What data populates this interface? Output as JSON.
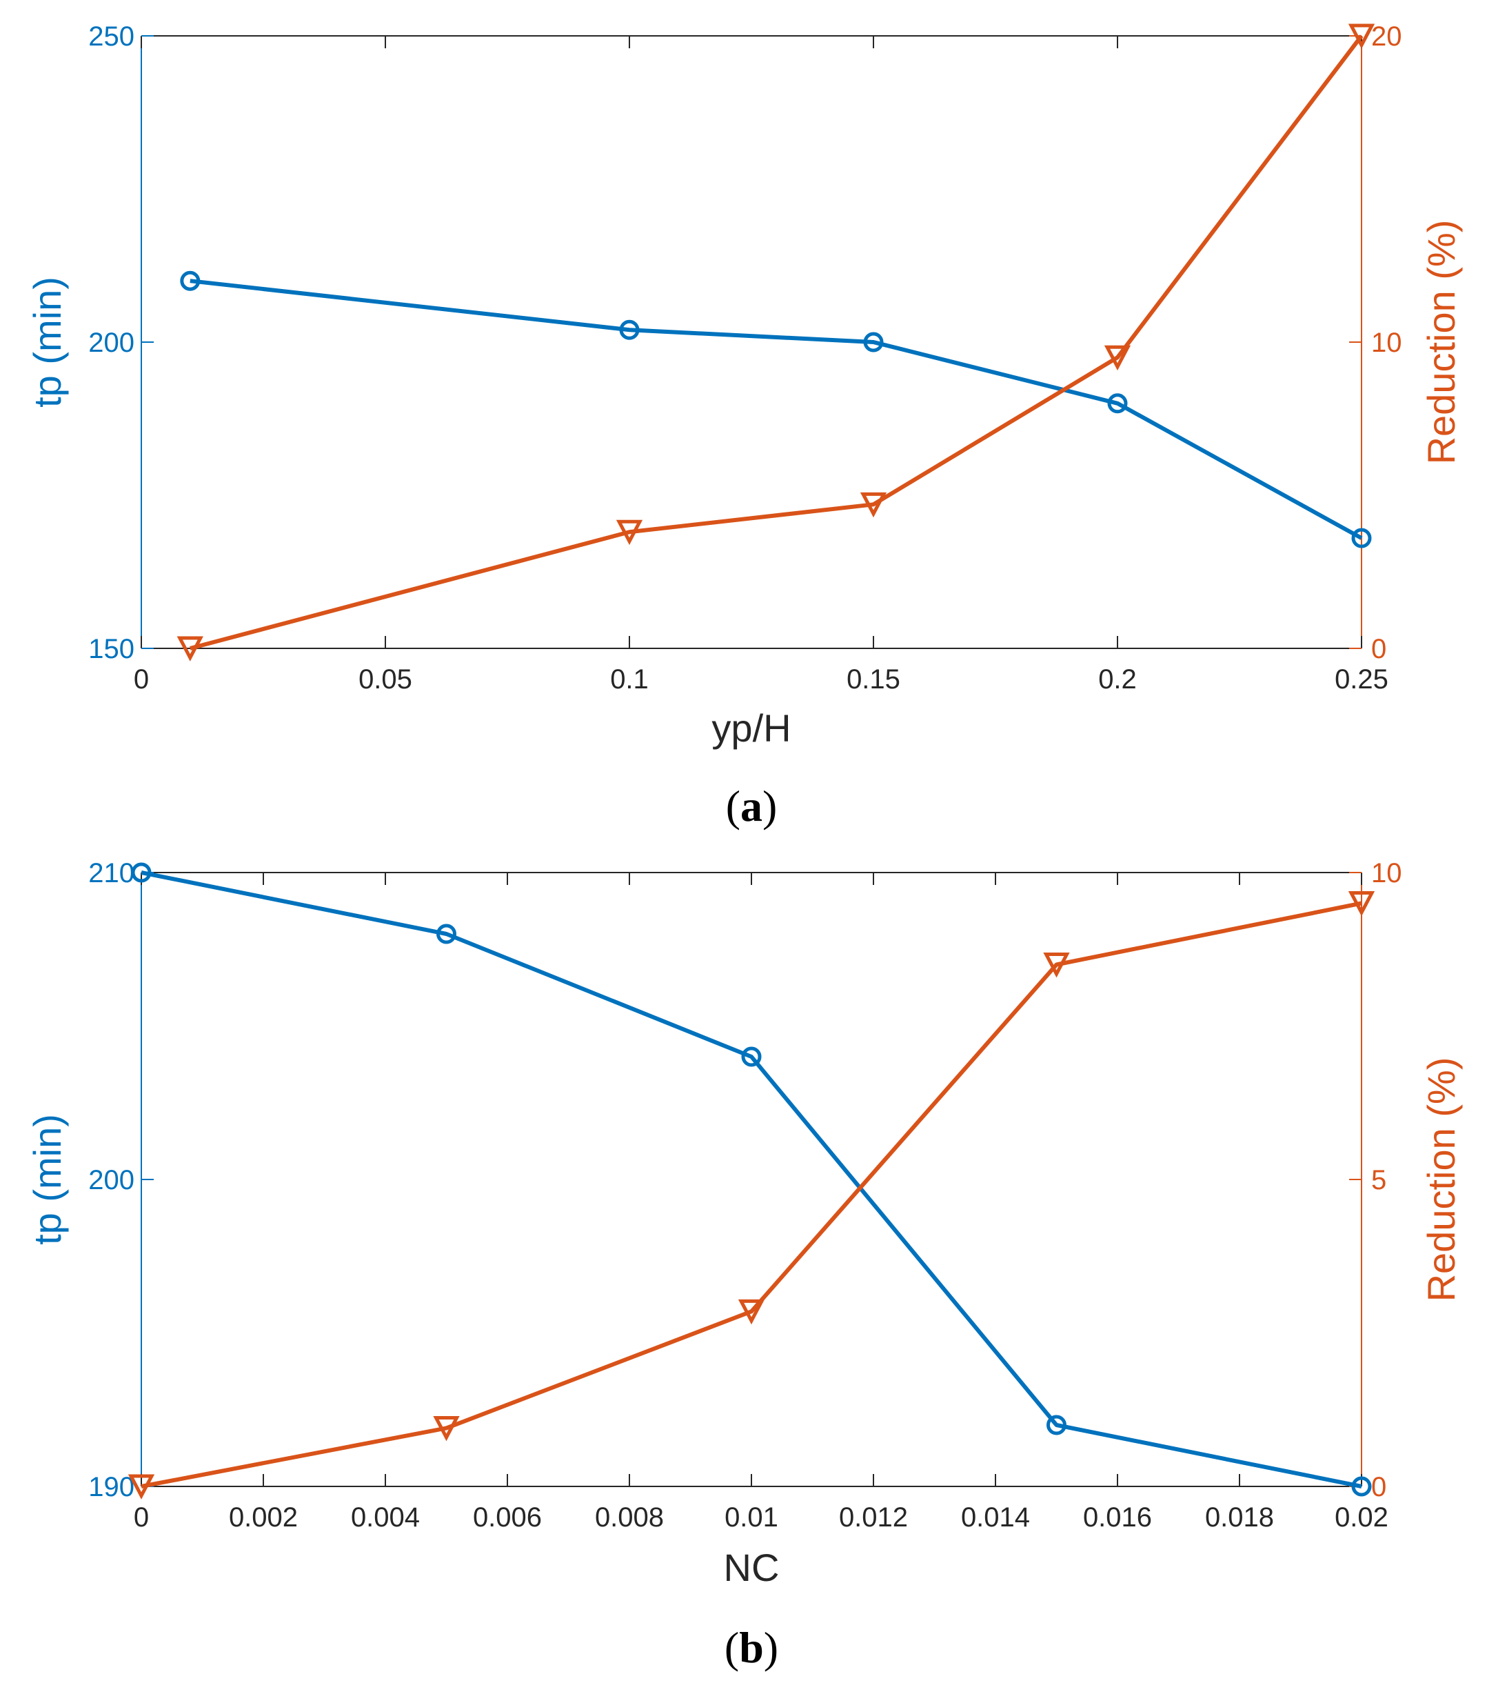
{
  "colors": {
    "left": "#0072BD",
    "right": "#D95319",
    "axis": "#262626"
  },
  "chart_data": [
    {
      "type": "line",
      "panel_label_paren_open": "(",
      "panel_label_letter": "a",
      "panel_label_paren_close": ")",
      "xlabel": "yp/H",
      "ylabel_left": "tp (min)",
      "ylabel_right": "Reduction (%)",
      "xlim": [
        0,
        0.25
      ],
      "ylim_left": [
        150,
        250
      ],
      "ylim_right": [
        0,
        20
      ],
      "x_ticks": [
        "0",
        "0.05",
        "0.1",
        "0.15",
        "0.2",
        "0.25"
      ],
      "y_left_ticks": [
        "150",
        "200",
        "250"
      ],
      "y_right_ticks": [
        "0",
        "10",
        "20"
      ],
      "series": [
        {
          "name": "tp (min)",
          "axis": "left",
          "marker": "circle",
          "x": [
            0.01,
            0.1,
            0.15,
            0.2,
            0.25
          ],
          "y": [
            210,
            202,
            200,
            190,
            168
          ]
        },
        {
          "name": "Reduction (%)",
          "axis": "right",
          "marker": "triangle-down",
          "x": [
            0.01,
            0.1,
            0.15,
            0.2,
            0.25
          ],
          "y": [
            0,
            3.8,
            4.7,
            9.5,
            20
          ]
        }
      ]
    },
    {
      "type": "line",
      "panel_label_paren_open": "(",
      "panel_label_letter": "b",
      "panel_label_paren_close": ")",
      "xlabel": "NC",
      "ylabel_left": "tp (min)",
      "ylabel_right": "Reduction (%)",
      "xlim": [
        0,
        0.02
      ],
      "ylim_left": [
        190,
        210
      ],
      "ylim_right": [
        0,
        10
      ],
      "x_ticks": [
        "0",
        "0.002",
        "0.004",
        "0.006",
        "0.008",
        "0.01",
        "0.012",
        "0.014",
        "0.016",
        "0.018",
        "0.02"
      ],
      "y_left_ticks": [
        "190",
        "200",
        "210"
      ],
      "y_right_ticks": [
        "0",
        "5",
        "10"
      ],
      "series": [
        {
          "name": "tp (min)",
          "axis": "left",
          "marker": "circle",
          "x": [
            0,
            0.005,
            0.01,
            0.015,
            0.02
          ],
          "y": [
            210,
            208,
            204,
            192,
            190
          ]
        },
        {
          "name": "Reduction (%)",
          "axis": "right",
          "marker": "triangle-down",
          "x": [
            0,
            0.005,
            0.01,
            0.015,
            0.02
          ],
          "y": [
            0,
            0.95,
            2.85,
            8.5,
            9.5
          ]
        }
      ]
    }
  ]
}
